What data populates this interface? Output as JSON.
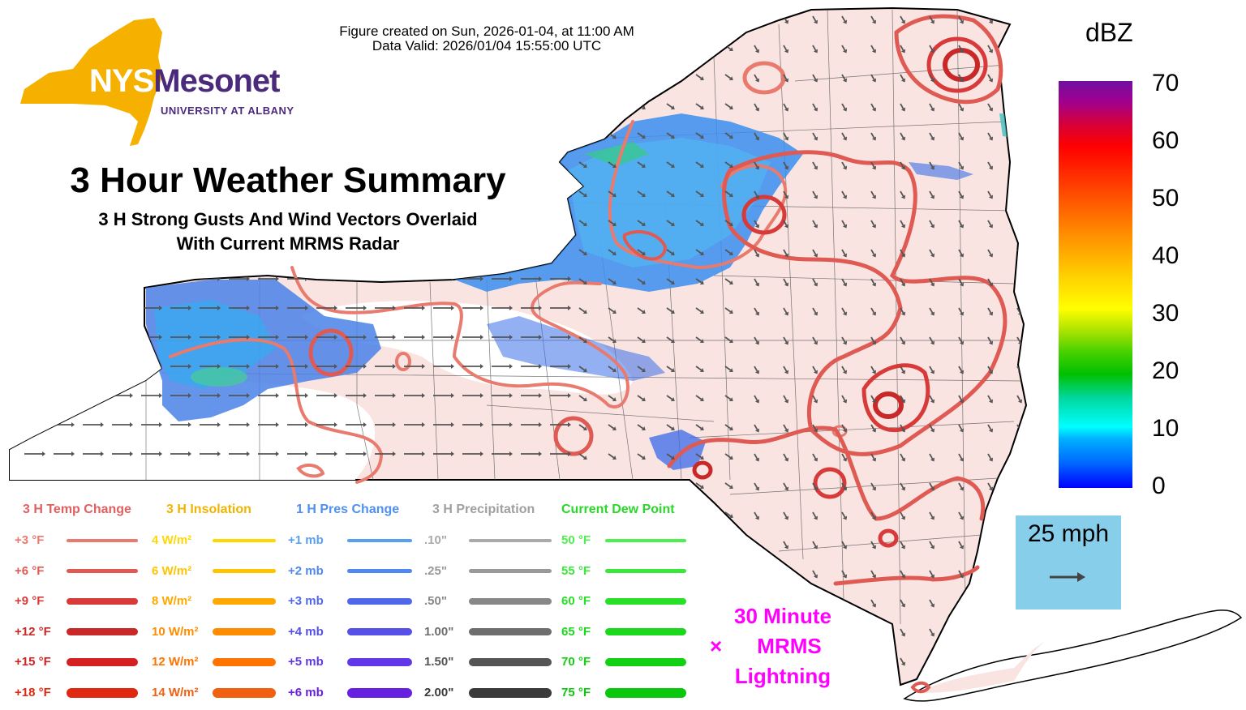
{
  "header": {
    "created": "Figure created on Sun, 2026-01-04, at 11:00 AM",
    "valid": "Data Valid: 2026/01/04 15:55:00 UTC"
  },
  "logo": {
    "nys": "NYS",
    "mesonet": "Mesonet",
    "university": "UNIVERSITY AT ALBANY"
  },
  "title": "3 Hour Weather Summary",
  "subtitle_line1": "3 H Strong Gusts And Wind Vectors Overlaid",
  "subtitle_line2": "With Current MRMS Radar",
  "colorbar": {
    "unit": "dBZ",
    "ticks": [
      "70",
      "60",
      "50",
      "40",
      "30",
      "20",
      "10",
      "0"
    ],
    "min": 0,
    "max": 70
  },
  "vector_scale": {
    "label": "25 mph"
  },
  "lightning": {
    "line1": "30 Minute",
    "symbol": "×",
    "line2": "MRMS",
    "line3": "Lightning",
    "color": "#ff00ff"
  },
  "legend": {
    "temp": {
      "header": "3 H Temp Change",
      "color": "#e06060",
      "items": [
        {
          "label": "+3 °F",
          "color": "#e87a6e"
        },
        {
          "label": "+6 °F",
          "color": "#e05a54"
        },
        {
          "label": "+9 °F",
          "color": "#d83a3a"
        },
        {
          "label": "+12 °F",
          "color": "#c82828"
        },
        {
          "label": "+15 °F",
          "color": "#d42020"
        },
        {
          "label": "+18 °F",
          "color": "#e02810"
        }
      ]
    },
    "insolation": {
      "header": "3 H Insolation",
      "color": "#f0b400",
      "items": [
        {
          "label": "4 W/m²",
          "color": "#ffd800"
        },
        {
          "label": "6 W/m²",
          "color": "#ffc400"
        },
        {
          "label": "8 W/m²",
          "color": "#ffa800"
        },
        {
          "label": "10 W/m²",
          "color": "#ff8c00"
        },
        {
          "label": "12 W/m²",
          "color": "#ff7400"
        },
        {
          "label": "14 W/m²",
          "color": "#f06010"
        }
      ]
    },
    "pressure": {
      "header": "1 H Pres Change",
      "color": "#5090f0",
      "items": [
        {
          "label": "+1 mb",
          "color": "#5aa0f0"
        },
        {
          "label": "+2 mb",
          "color": "#5088f0"
        },
        {
          "label": "+3 mb",
          "color": "#5068e8"
        },
        {
          "label": "+4 mb",
          "color": "#5450e8"
        },
        {
          "label": "+5 mb",
          "color": "#6038e8"
        },
        {
          "label": "+6 mb",
          "color": "#6820e0"
        }
      ]
    },
    "precip": {
      "header": "3 H Precipitation",
      "color": "#a0a0a0",
      "items": [
        {
          "label": ".10\"",
          "color": "#aaaaaa"
        },
        {
          "label": ".25\"",
          "color": "#999999"
        },
        {
          "label": ".50\"",
          "color": "#888888"
        },
        {
          "label": "1.00\"",
          "color": "#6e6e6e"
        },
        {
          "label": "1.50\"",
          "color": "#555555"
        },
        {
          "label": "2.00\"",
          "color": "#3a3a3a"
        }
      ]
    },
    "dewpoint": {
      "header": "Current Dew Point",
      "color": "#2ad82a",
      "items": [
        {
          "label": "50 °F",
          "color": "#4ef04e"
        },
        {
          "label": "55 °F",
          "color": "#3ae83a"
        },
        {
          "label": "60 °F",
          "color": "#28e028"
        },
        {
          "label": "65 °F",
          "color": "#1cd81c"
        },
        {
          "label": "70 °F",
          "color": "#12d012"
        },
        {
          "label": "75 °F",
          "color": "#0cc80c"
        }
      ]
    }
  }
}
